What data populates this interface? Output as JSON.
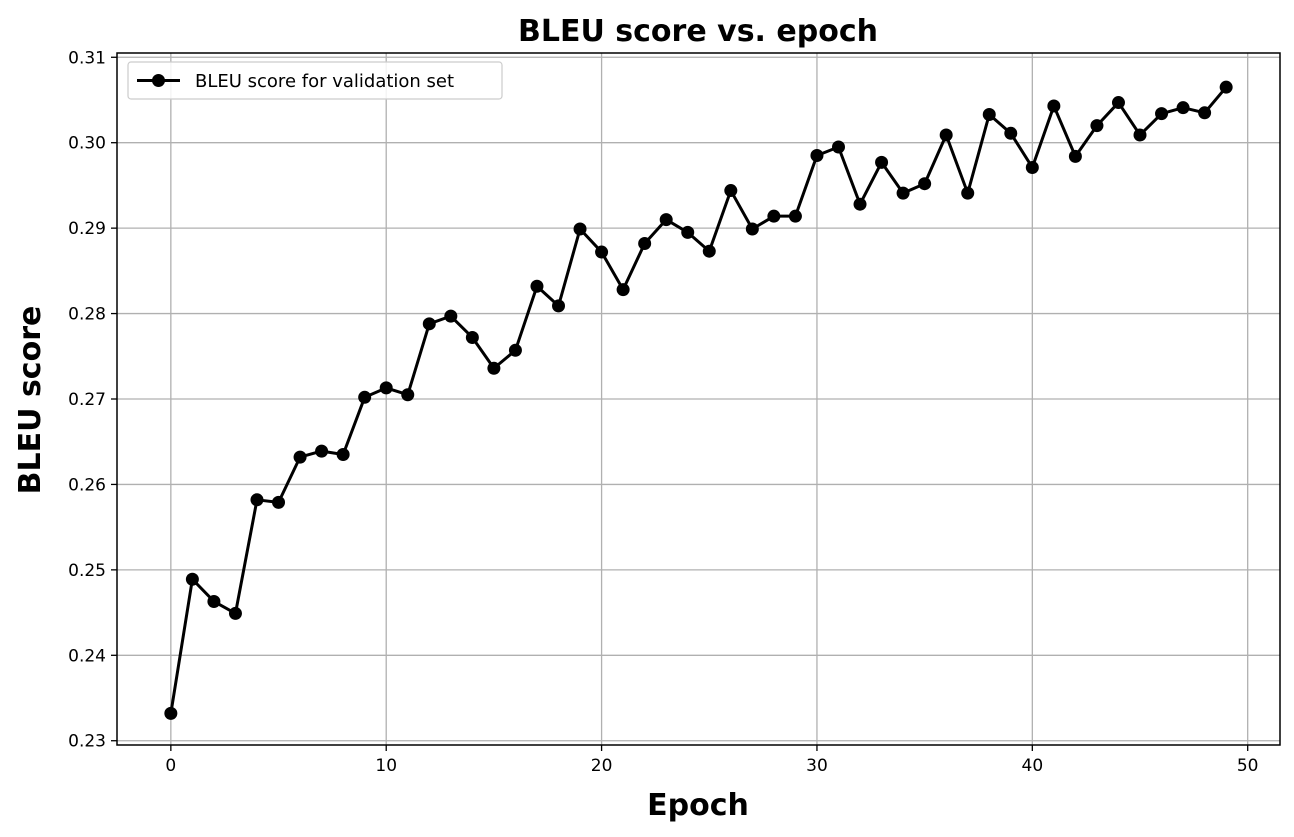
{
  "chart_data": {
    "type": "line",
    "title": "BLEU score vs. epoch",
    "xlabel": "Epoch",
    "ylabel": "BLEU score",
    "xlim": [
      -2.5,
      51.5
    ],
    "ylim": [
      0.2295,
      0.3105
    ],
    "xticks": [
      0,
      10,
      20,
      30,
      40,
      50
    ],
    "yticks": [
      0.23,
      0.24,
      0.25,
      0.26,
      0.27,
      0.28,
      0.29,
      0.3,
      0.31
    ],
    "ytick_labels": [
      "0.23",
      "0.24",
      "0.25",
      "0.26",
      "0.27",
      "0.28",
      "0.29",
      "0.30",
      "0.31"
    ],
    "grid": true,
    "legend_position": "upper-left",
    "series": [
      {
        "name": "BLEU score for validation set",
        "color": "#000000",
        "marker": "circle",
        "x": [
          0,
          1,
          2,
          3,
          4,
          5,
          6,
          7,
          8,
          9,
          10,
          11,
          12,
          13,
          14,
          15,
          16,
          17,
          18,
          19,
          20,
          21,
          22,
          23,
          24,
          25,
          26,
          27,
          28,
          29,
          30,
          31,
          32,
          33,
          34,
          35,
          36,
          37,
          38,
          39,
          40,
          41,
          42,
          43,
          44,
          45,
          46,
          47,
          48,
          49
        ],
        "y": [
          0.2332,
          0.2489,
          0.2463,
          0.2449,
          0.2582,
          0.2579,
          0.2632,
          0.2639,
          0.2635,
          0.2702,
          0.2713,
          0.2705,
          0.2788,
          0.2797,
          0.2772,
          0.2736,
          0.2757,
          0.2832,
          0.2809,
          0.2899,
          0.2872,
          0.2828,
          0.2882,
          0.291,
          0.2895,
          0.2873,
          0.2944,
          0.2899,
          0.2914,
          0.2914,
          0.2985,
          0.2995,
          0.2928,
          0.2977,
          0.2941,
          0.2952,
          0.3009,
          0.2941,
          0.3033,
          0.3011,
          0.2971,
          0.3043,
          0.2984,
          0.302,
          0.3047,
          0.3009,
          0.3034,
          0.3041,
          0.3035,
          0.3065
        ]
      }
    ]
  }
}
